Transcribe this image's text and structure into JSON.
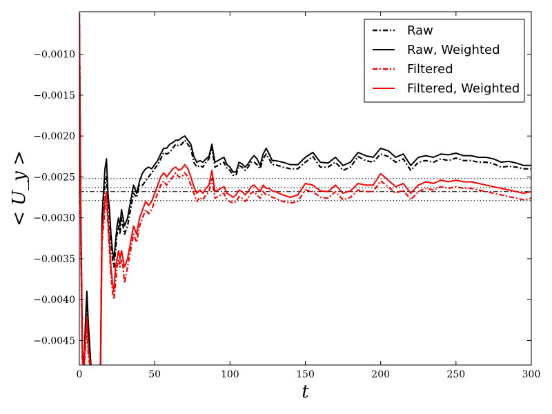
{
  "chart_data": {
    "type": "line",
    "title": "",
    "xlabel": "t",
    "ylabel": "< U_y >",
    "xlim": [
      0,
      300
    ],
    "ylim": [
      -0.0048,
      -0.00048
    ],
    "xticks": [
      0,
      50,
      100,
      150,
      200,
      250,
      300
    ],
    "xtick_labels": [
      "0",
      "50",
      "100",
      "150",
      "200",
      "250",
      "300"
    ],
    "yticks": [
      -0.0045,
      -0.004,
      -0.0035,
      -0.003,
      -0.0025,
      -0.002,
      -0.0015,
      -0.001
    ],
    "ytick_labels": [
      "−0.0045",
      "−0.0040",
      "−0.0035",
      "−0.0030",
      "−0.0025",
      "−0.0020",
      "−0.0015",
      "−0.0010"
    ],
    "grid": false,
    "legend_position": "top-right",
    "series": [
      {
        "name": "Raw",
        "color": "#000000",
        "style": "dashdot",
        "x": [
          0,
          1,
          2,
          3,
          4,
          5,
          6,
          8,
          10,
          12,
          14,
          15,
          16,
          17,
          18,
          19,
          20,
          21,
          22,
          23,
          24,
          25,
          26,
          27,
          28,
          29,
          30,
          32,
          34,
          36,
          38,
          40,
          42,
          44,
          46,
          48,
          50,
          52,
          54,
          56,
          58,
          60,
          62,
          64,
          66,
          68,
          70,
          72,
          74,
          76,
          78,
          80,
          82,
          84,
          86,
          88,
          90,
          92,
          94,
          96,
          98,
          100,
          102,
          104,
          106,
          108,
          110,
          112,
          114,
          116,
          118,
          120,
          122,
          124,
          126,
          128,
          130,
          135,
          140,
          145,
          150,
          155,
          160,
          165,
          170,
          175,
          180,
          185,
          190,
          195,
          200,
          205,
          210,
          215,
          220,
          225,
          230,
          235,
          240,
          245,
          250,
          255,
          260,
          265,
          270,
          275,
          280,
          285,
          290,
          295,
          300
        ],
        "y": [
          -0.0005,
          -0.0031,
          -0.0047,
          -0.0049,
          -0.0044,
          -0.0041,
          -0.0044,
          -0.0049,
          -0.0049,
          -0.0049,
          -0.0049,
          -0.0031,
          -0.0028,
          -0.0026,
          -0.0025,
          -0.0028,
          -0.003,
          -0.0033,
          -0.0035,
          -0.0036,
          -0.0034,
          -0.0032,
          -0.0031,
          -0.0032,
          -0.003,
          -0.0031,
          -0.0032,
          -0.0031,
          -0.0029,
          -0.0027,
          -0.00275,
          -0.0026,
          -0.0026,
          -0.00255,
          -0.0025,
          -0.00245,
          -0.0024,
          -0.00235,
          -0.00228,
          -0.0022,
          -0.00222,
          -0.0022,
          -0.00215,
          -0.0021,
          -0.00212,
          -0.0021,
          -0.00205,
          -0.0021,
          -0.00215,
          -0.00232,
          -0.00238,
          -0.00236,
          -0.00238,
          -0.00232,
          -0.00228,
          -0.00215,
          -0.00238,
          -0.00236,
          -0.00234,
          -0.00232,
          -0.0024,
          -0.00242,
          -0.00248,
          -0.00248,
          -0.00236,
          -0.00238,
          -0.00242,
          -0.00238,
          -0.00232,
          -0.00232,
          -0.00235,
          -0.0024,
          -0.00228,
          -0.00222,
          -0.00228,
          -0.00235,
          -0.00235,
          -0.00238,
          -0.0024,
          -0.0024,
          -0.00232,
          -0.00225,
          -0.00238,
          -0.00238,
          -0.00232,
          -0.00242,
          -0.00238,
          -0.00225,
          -0.0023,
          -0.00232,
          -0.00222,
          -0.00225,
          -0.00232,
          -0.00228,
          -0.00242,
          -0.00232,
          -0.0023,
          -0.00232,
          -0.00228,
          -0.0023,
          -0.00227,
          -0.0023,
          -0.0023,
          -0.00232,
          -0.00232,
          -0.00234,
          -0.00238,
          -0.00237,
          -0.00238,
          -0.0024,
          -0.0024
        ]
      },
      {
        "name": "Raw, Weighted",
        "color": "#000000",
        "style": "solid",
        "x": [
          0,
          1,
          2,
          3,
          4,
          5,
          6,
          8,
          10,
          12,
          14,
          15,
          16,
          17,
          18,
          19,
          20,
          21,
          22,
          23,
          24,
          25,
          26,
          27,
          28,
          29,
          30,
          32,
          34,
          36,
          38,
          40,
          42,
          44,
          46,
          48,
          50,
          52,
          54,
          56,
          58,
          60,
          62,
          64,
          66,
          68,
          70,
          72,
          74,
          76,
          78,
          80,
          82,
          84,
          86,
          88,
          90,
          92,
          94,
          96,
          98,
          100,
          102,
          104,
          106,
          108,
          110,
          112,
          114,
          116,
          118,
          120,
          122,
          124,
          126,
          128,
          130,
          135,
          140,
          145,
          150,
          155,
          160,
          165,
          170,
          175,
          180,
          185,
          190,
          195,
          200,
          205,
          210,
          215,
          220,
          225,
          230,
          235,
          240,
          245,
          250,
          255,
          260,
          265,
          270,
          275,
          280,
          285,
          290,
          295,
          300
        ],
        "y": [
          -0.0005,
          -0.003,
          -0.0046,
          -0.0049,
          -0.0043,
          -0.0039,
          -0.0043,
          -0.0049,
          -0.0049,
          -0.0049,
          -0.0049,
          -0.003,
          -0.0027,
          -0.0024,
          -0.00228,
          -0.0027,
          -0.0029,
          -0.0032,
          -0.0034,
          -0.0035,
          -0.0033,
          -0.0031,
          -0.003,
          -0.0031,
          -0.0029,
          -0.003,
          -0.0031,
          -0.003,
          -0.0028,
          -0.0026,
          -0.0027,
          -0.00255,
          -0.00245,
          -0.0024,
          -0.00238,
          -0.0024,
          -0.00235,
          -0.0023,
          -0.00222,
          -0.00215,
          -0.00215,
          -0.0021,
          -0.00208,
          -0.00205,
          -0.00205,
          -0.00202,
          -0.002,
          -0.00205,
          -0.0021,
          -0.00225,
          -0.00232,
          -0.0023,
          -0.00232,
          -0.00228,
          -0.00225,
          -0.0021,
          -0.00232,
          -0.0023,
          -0.00228,
          -0.00226,
          -0.00235,
          -0.00238,
          -0.00244,
          -0.00244,
          -0.00232,
          -0.00234,
          -0.00238,
          -0.00234,
          -0.00228,
          -0.00224,
          -0.00228,
          -0.00236,
          -0.00222,
          -0.00215,
          -0.00222,
          -0.0023,
          -0.0023,
          -0.00232,
          -0.00235,
          -0.00235,
          -0.00226,
          -0.0022,
          -0.00232,
          -0.00233,
          -0.00226,
          -0.00236,
          -0.00232,
          -0.0022,
          -0.00224,
          -0.00226,
          -0.00215,
          -0.00218,
          -0.00226,
          -0.00222,
          -0.00236,
          -0.00226,
          -0.00224,
          -0.00226,
          -0.00222,
          -0.00223,
          -0.00221,
          -0.00224,
          -0.00224,
          -0.00226,
          -0.00226,
          -0.00228,
          -0.00232,
          -0.00231,
          -0.00233,
          -0.00236,
          -0.00236
        ]
      },
      {
        "name": "Filtered",
        "color": "#ff0000",
        "style": "dashdot",
        "x": [
          0,
          1,
          2,
          3,
          4,
          5,
          6,
          8,
          10,
          12,
          14,
          15,
          16,
          17,
          18,
          19,
          20,
          21,
          22,
          23,
          24,
          25,
          26,
          27,
          28,
          29,
          30,
          32,
          34,
          36,
          38,
          40,
          42,
          44,
          46,
          48,
          50,
          52,
          54,
          56,
          58,
          60,
          62,
          64,
          66,
          68,
          70,
          72,
          74,
          76,
          78,
          80,
          82,
          84,
          86,
          88,
          90,
          92,
          94,
          96,
          98,
          100,
          102,
          104,
          106,
          108,
          110,
          112,
          114,
          116,
          118,
          120,
          122,
          124,
          126,
          128,
          130,
          135,
          140,
          145,
          150,
          155,
          160,
          165,
          170,
          175,
          180,
          185,
          190,
          195,
          200,
          205,
          210,
          215,
          220,
          225,
          230,
          235,
          240,
          245,
          250,
          255,
          260,
          265,
          270,
          275,
          280,
          285,
          290,
          295,
          300
        ],
        "y": [
          -0.0005,
          -0.0034,
          -0.0048,
          -0.0049,
          -0.0046,
          -0.0043,
          -0.0047,
          -0.0049,
          -0.0049,
          -0.0049,
          -0.0049,
          -0.0033,
          -0.0031,
          -0.0029,
          -0.0027,
          -0.0031,
          -0.0034,
          -0.0037,
          -0.0039,
          -0.004,
          -0.0038,
          -0.0036,
          -0.0035,
          -0.0036,
          -0.0035,
          -0.0036,
          -0.0038,
          -0.0036,
          -0.0034,
          -0.0032,
          -0.0033,
          -0.0031,
          -0.003,
          -0.0029,
          -0.00295,
          -0.0029,
          -0.0028,
          -0.0027,
          -0.0026,
          -0.00255,
          -0.0026,
          -0.00255,
          -0.0025,
          -0.00245,
          -0.0025,
          -0.0025,
          -0.00245,
          -0.0025,
          -0.0026,
          -0.0027,
          -0.0028,
          -0.00275,
          -0.00278,
          -0.00272,
          -0.00268,
          -0.00252,
          -0.00276,
          -0.00274,
          -0.00272,
          -0.0027,
          -0.00278,
          -0.0028,
          -0.00282,
          -0.0028,
          -0.00274,
          -0.00276,
          -0.0028,
          -0.00276,
          -0.0027,
          -0.00268,
          -0.00272,
          -0.00276,
          -0.00268,
          -0.00272,
          -0.00272,
          -0.00275,
          -0.00276,
          -0.0028,
          -0.00282,
          -0.0028,
          -0.00266,
          -0.00268,
          -0.00275,
          -0.00276,
          -0.00268,
          -0.00278,
          -0.00275,
          -0.00266,
          -0.00268,
          -0.00268,
          -0.00255,
          -0.00262,
          -0.0027,
          -0.00266,
          -0.00278,
          -0.00268,
          -0.00264,
          -0.00266,
          -0.00262,
          -0.00264,
          -0.00262,
          -0.00264,
          -0.00264,
          -0.00266,
          -0.00268,
          -0.0027,
          -0.00272,
          -0.00274,
          -0.00276,
          -0.00278,
          -0.00276
        ]
      },
      {
        "name": "Filtered, Weighted",
        "color": "#ff0000",
        "style": "solid",
        "x": [
          0,
          1,
          2,
          3,
          4,
          5,
          6,
          8,
          10,
          12,
          14,
          15,
          16,
          17,
          18,
          19,
          20,
          21,
          22,
          23,
          24,
          25,
          26,
          27,
          28,
          29,
          30,
          32,
          34,
          36,
          38,
          40,
          42,
          44,
          46,
          48,
          50,
          52,
          54,
          56,
          58,
          60,
          62,
          64,
          66,
          68,
          70,
          72,
          74,
          76,
          78,
          80,
          82,
          84,
          86,
          88,
          90,
          92,
          94,
          96,
          98,
          100,
          102,
          104,
          106,
          108,
          110,
          112,
          114,
          116,
          118,
          120,
          122,
          124,
          126,
          128,
          130,
          135,
          140,
          145,
          150,
          155,
          160,
          165,
          170,
          175,
          180,
          185,
          190,
          195,
          200,
          205,
          210,
          215,
          220,
          225,
          230,
          235,
          240,
          245,
          250,
          255,
          260,
          265,
          270,
          275,
          280,
          285,
          290,
          295,
          300
        ],
        "y": [
          -0.0005,
          -0.0033,
          -0.0047,
          -0.0049,
          -0.0045,
          -0.0042,
          -0.0046,
          -0.0049,
          -0.0049,
          -0.0049,
          -0.0049,
          -0.0032,
          -0.003,
          -0.0028,
          -0.00268,
          -0.003,
          -0.0033,
          -0.0036,
          -0.0038,
          -0.0039,
          -0.0036,
          -0.0035,
          -0.0034,
          -0.0035,
          -0.0034,
          -0.0035,
          -0.0036,
          -0.0035,
          -0.0033,
          -0.0031,
          -0.0032,
          -0.003,
          -0.0029,
          -0.0028,
          -0.00285,
          -0.0028,
          -0.0027,
          -0.0026,
          -0.0025,
          -0.00245,
          -0.0025,
          -0.00245,
          -0.0024,
          -0.00238,
          -0.00242,
          -0.0024,
          -0.00235,
          -0.0024,
          -0.0025,
          -0.00262,
          -0.0027,
          -0.00266,
          -0.0027,
          -0.00264,
          -0.0026,
          -0.00242,
          -0.00268,
          -0.00266,
          -0.00264,
          -0.00262,
          -0.0027,
          -0.00272,
          -0.00275,
          -0.00272,
          -0.00266,
          -0.00268,
          -0.00272,
          -0.00268,
          -0.00262,
          -0.0026,
          -0.00264,
          -0.00268,
          -0.0026,
          -0.00264,
          -0.00264,
          -0.00267,
          -0.00268,
          -0.00272,
          -0.00275,
          -0.00272,
          -0.00258,
          -0.0026,
          -0.00267,
          -0.00268,
          -0.0026,
          -0.0027,
          -0.00267,
          -0.00258,
          -0.0026,
          -0.0026,
          -0.00246,
          -0.00254,
          -0.00262,
          -0.00258,
          -0.0027,
          -0.0026,
          -0.00256,
          -0.00258,
          -0.00254,
          -0.00256,
          -0.00254,
          -0.00256,
          -0.00256,
          -0.00258,
          -0.0026,
          -0.00262,
          -0.00264,
          -0.00266,
          -0.00268,
          -0.0027,
          -0.00268
        ]
      }
    ],
    "reference_lines": [
      {
        "y": -0.00252,
        "style": "dotted",
        "color": "#000000"
      },
      {
        "y": -0.00263,
        "style": "dotted",
        "color": "#000000"
      },
      {
        "y": -0.00268,
        "style": "dashdot",
        "color": "#000000"
      },
      {
        "y": -0.00279,
        "style": "dotted",
        "color": "#000000"
      }
    ]
  }
}
